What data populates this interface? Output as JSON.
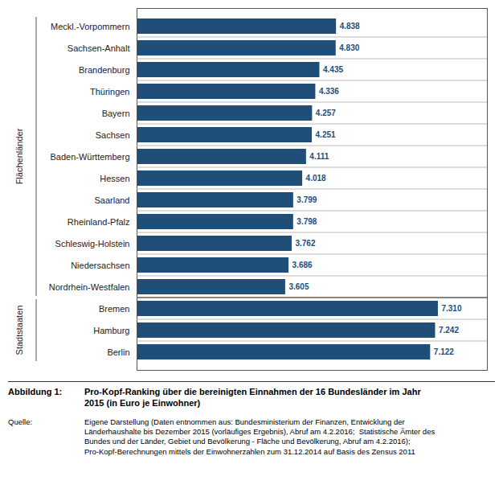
{
  "chart_data": {
    "type": "bar",
    "orientation": "horizontal",
    "categories": [
      "Meckl.-Vorpommern",
      "Sachsen-Anhalt",
      "Brandenburg",
      "Thüringen",
      "Bayern",
      "Sachsen",
      "Baden-Württemberg",
      "Hessen",
      "Saarland",
      "Rheinland-Pfalz",
      "Schleswig-Holstein",
      "Niedersachsen",
      "Nordrhein-Westfalen",
      "Bremen",
      "Hamburg",
      "Berlin"
    ],
    "values": [
      4838,
      4830,
      4435,
      4336,
      4257,
      4251,
      4111,
      4018,
      3799,
      3798,
      3762,
      3686,
      3605,
      7310,
      7242,
      7122
    ],
    "value_labels": [
      "4.838",
      "4.830",
      "4.435",
      "4.336",
      "4.257",
      "4.251",
      "4.111",
      "4.018",
      "3.799",
      "3.798",
      "3.762",
      "3.686",
      "3.605",
      "7.310",
      "7.242",
      "7.122"
    ],
    "color": "#1F4E79",
    "data_labels": true,
    "xlim": [
      0,
      8500
    ],
    "tick_labels": "y",
    "groups": [
      {
        "label": "Flächenländer",
        "categories": [
          "Meckl.-Vorpommern",
          "Sachsen-Anhalt",
          "Brandenburg",
          "Thüringen",
          "Bayern",
          "Sachsen",
          "Baden-Württemberg",
          "Hessen",
          "Saarland",
          "Rheinland-Pfalz",
          "Schleswig-Holstein",
          "Niedersachsen",
          "Nordrhein-Westfalen"
        ]
      },
      {
        "label": "Stadtstaaten",
        "categories": [
          "Bremen",
          "Hamburg",
          "Berlin"
        ]
      }
    ],
    "caption": {
      "title": "Abbildung 1:",
      "text": "Pro-Kopf-Ranking über die bereinigten Einnahmen der 16 Bundesländer im Jahr\n2015 (in Euro je Einwohner)"
    },
    "source": {
      "title": "Quelle:",
      "text": "Eigene Darstellung (Daten entnommen aus: Bundesministerium der Finanzen, Entwicklung der\nLänderhaushalte bis Dezember 2015 (vorläufiges Ergebnis), Abruf am 4.2.2016;  Statistische Ämter des\nBundes und der Länder, Gebiet und Bevölkerung - Fläche und Bevölkerung, Abruf am 4.2.2016);\nPro-Kopf-Berechnungen mittels der Einwohnerzahlen zum 31.12.2014 auf Basis des Zensus 2011"
    }
  }
}
